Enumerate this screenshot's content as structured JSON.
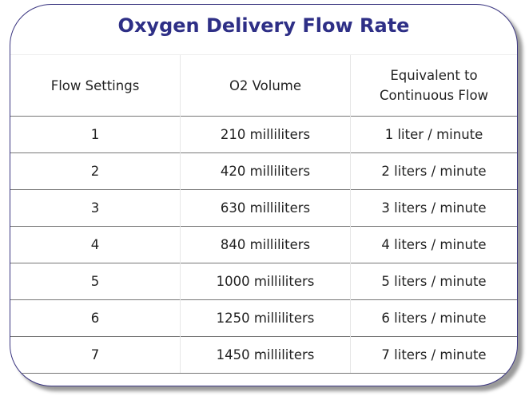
{
  "title": "Oxygen Delivery Flow Rate",
  "colors": {
    "title": "#2e2f86",
    "border": "#3a3580"
  },
  "headers": [
    "Flow Settings",
    "O2 Volume",
    "Equivalent to Continuous Flow"
  ],
  "rows": [
    [
      "1",
      "210 milliliters",
      "1 liter / minute"
    ],
    [
      "2",
      "420 milliliters",
      "2 liters / minute"
    ],
    [
      "3",
      "630 milliliters",
      "3 liters / minute"
    ],
    [
      "4",
      "840 milliliters",
      "4 liters / minute"
    ],
    [
      "5",
      "1000 milliliters",
      "5 liters / minute"
    ],
    [
      "6",
      "1250 milliliters",
      "6 liters / minute"
    ],
    [
      "7",
      "1450 milliliters",
      "7 liters / minute"
    ]
  ]
}
